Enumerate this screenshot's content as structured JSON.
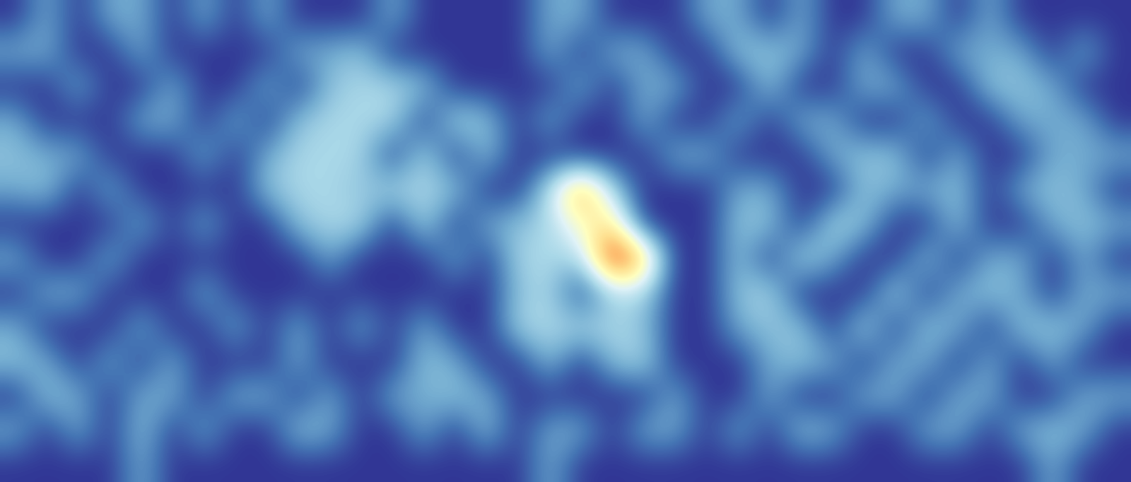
{
  "chart_data": {
    "type": "heatmap",
    "tick_labels": false,
    "value_range": [
      0,
      1
    ],
    "cells": [
      [
        0,
        0.2,
        0,
        0.2,
        0.2,
        0,
        0.2,
        0,
        0.2,
        0,
        0,
        0,
        0.2,
        0,
        0,
        0,
        0,
        0.2,
        0.2,
        0,
        0,
        0,
        0.2,
        0.2,
        0,
        0.2,
        0,
        0,
        0.2,
        0.2,
        0,
        0.2,
        0,
        0,
        0,
        0
      ],
      [
        0.2,
        0.2,
        0,
        0,
        0.2,
        0,
        0,
        0,
        0,
        0.2,
        0.2,
        0.25,
        0,
        0,
        0,
        0,
        0,
        0.2,
        0,
        0.2,
        0.2,
        0,
        0,
        0.25,
        0.25,
        0.2,
        0,
        0.2,
        0,
        0,
        0.2,
        0.2,
        0.2,
        0,
        0.2,
        0
      ],
      [
        0,
        0,
        0.2,
        0,
        0,
        0.2,
        0,
        0,
        0.2,
        0,
        0.25,
        0.3,
        0.3,
        0.25,
        0,
        0,
        0,
        0,
        0.2,
        0,
        0.2,
        0.2,
        0,
        0,
        0.25,
        0,
        0,
        0.2,
        0.2,
        0,
        0,
        0.25,
        0.25,
        0.2,
        0,
        0
      ],
      [
        0.2,
        0,
        0,
        0,
        0.2,
        0.2,
        0,
        0.2,
        0,
        0.25,
        0.3,
        0.3,
        0.3,
        0,
        0.3,
        0.25,
        0,
        0.2,
        0,
        0,
        0.2,
        0,
        0,
        0.2,
        0,
        0.2,
        0.2,
        0,
        0,
        0.2,
        0,
        0,
        0.2,
        0.2,
        0.2,
        0
      ],
      [
        0.25,
        0.2,
        0.2,
        0,
        0,
        0,
        0.2,
        0,
        0.2,
        0.3,
        0.3,
        0.3,
        0,
        0.3,
        0,
        0.25,
        0,
        0,
        0,
        0,
        0,
        0.2,
        0.2,
        0,
        0,
        0,
        0.2,
        0.25,
        0.25,
        0,
        0.2,
        0,
        0,
        0.2,
        0.2,
        0.2
      ],
      [
        0.2,
        0.25,
        0,
        0.2,
        0,
        0,
        0,
        0,
        0.25,
        0.3,
        0.3,
        0.25,
        0.3,
        0.3,
        0.25,
        0,
        0,
        0.35,
        0.75,
        0.3,
        0,
        0,
        0,
        0.2,
        0.2,
        0,
        0,
        0.25,
        0.2,
        0.2,
        0.25,
        0,
        0.2,
        0.25,
        0.2,
        0
      ],
      [
        0,
        0,
        0,
        0,
        0.2,
        0,
        0.2,
        0,
        0,
        0.25,
        0.3,
        0.3,
        0,
        0.3,
        0,
        0.2,
        0.25,
        0.3,
        0.5,
        0.6,
        0,
        0,
        0,
        0.25,
        0.25,
        0,
        0.3,
        0.25,
        0,
        0,
        0.25,
        0,
        0,
        0.2,
        0.25,
        0.2
      ],
      [
        0.2,
        0,
        0,
        0.2,
        0,
        0,
        0,
        0,
        0,
        0,
        0.2,
        0,
        0,
        0,
        0.2,
        0,
        0.3,
        0.3,
        0.3,
        0.95,
        0.7,
        0,
        0,
        0.25,
        0,
        0.3,
        0.2,
        0,
        0,
        0.25,
        0,
        0.2,
        0.2,
        0,
        0.2,
        0
      ],
      [
        0,
        0.2,
        0.2,
        0,
        0,
        0,
        0.2,
        0,
        0,
        0,
        0,
        0,
        0,
        0,
        0,
        0,
        0.25,
        0.3,
        0,
        0.3,
        0.3,
        0,
        0,
        0.25,
        0.3,
        0,
        0,
        0,
        0.3,
        0,
        0.2,
        0.25,
        0.2,
        0,
        0.2,
        0.2
      ],
      [
        0.2,
        0,
        0,
        0,
        0.2,
        0,
        0,
        0.2,
        0,
        0.2,
        0,
        0.2,
        0,
        0.2,
        0,
        0,
        0.3,
        0.3,
        0.3,
        0.3,
        0.25,
        0,
        0,
        0.2,
        0.25,
        0.25,
        0,
        0.3,
        0,
        0.25,
        0.2,
        0,
        0.25,
        0.25,
        0.2,
        0
      ],
      [
        0.25,
        0.2,
        0,
        0.2,
        0,
        0.2,
        0,
        0,
        0,
        0.2,
        0,
        0,
        0,
        0.25,
        0.2,
        0,
        0,
        0.25,
        0,
        0.25,
        0.3,
        0,
        0,
        0,
        0.2,
        0.25,
        0.2,
        0,
        0.2,
        0.2,
        0,
        0.2,
        0,
        0.2,
        0,
        0
      ],
      [
        0,
        0.25,
        0.2,
        0,
        0.2,
        0.2,
        0,
        0.2,
        0.2,
        0,
        0.2,
        0,
        0.2,
        0.2,
        0.25,
        0.2,
        0,
        0,
        0,
        0,
        0,
        0.2,
        0,
        0,
        0.2,
        0,
        0,
        0.2,
        0.2,
        0,
        0.2,
        0.2,
        0,
        0,
        0.2,
        0.2
      ],
      [
        0.2,
        0,
        0.2,
        0,
        0.25,
        0,
        0.2,
        0,
        0,
        0.25,
        0.2,
        0,
        0,
        0.2,
        0,
        0.25,
        0,
        0.2,
        0.2,
        0,
        0.2,
        0.2,
        0,
        0.2,
        0,
        0.25,
        0.2,
        0,
        0,
        0.2,
        0.2,
        0,
        0.2,
        0.25,
        0.2,
        0
      ],
      [
        0,
        0,
        0,
        0,
        0.2,
        0,
        0,
        0,
        0,
        0,
        0,
        0,
        0,
        0,
        0,
        0,
        0,
        0.2,
        0,
        0,
        0,
        0,
        0,
        0,
        0,
        0,
        0,
        0,
        0,
        0,
        0,
        0,
        0,
        0.2,
        0,
        0
      ]
    ]
  }
}
